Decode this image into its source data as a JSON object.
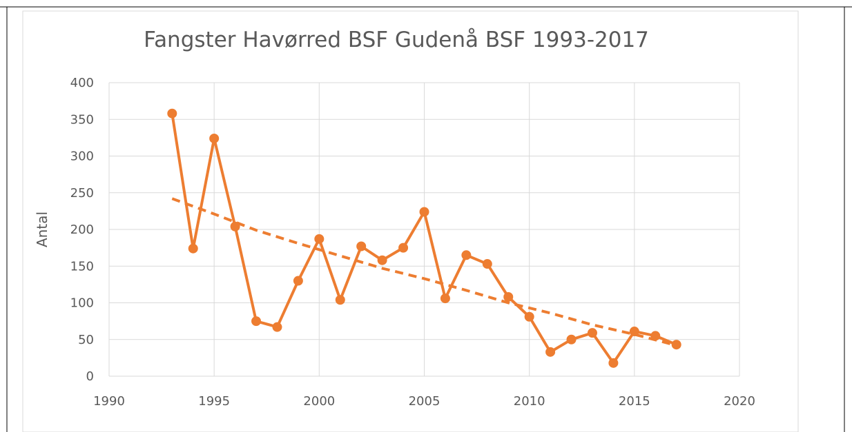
{
  "colors": {
    "series": "#ED7D31",
    "grid": "#D9D9D9",
    "text": "#595959",
    "border": "#000000"
  },
  "chart_data": {
    "type": "line",
    "title": "Fangster Havørred BSF Gudenå BSF 1993-2017",
    "xlabel": "",
    "ylabel": "Antal",
    "xlim": [
      1990,
      2020
    ],
    "ylim": [
      0,
      400
    ],
    "xticks": [
      1990,
      1995,
      2000,
      2005,
      2010,
      2015,
      2020
    ],
    "yticks": [
      0,
      50,
      100,
      150,
      200,
      250,
      300,
      350,
      400
    ],
    "grid": true,
    "legend": "none",
    "series": [
      {
        "x": [
          1993,
          1994,
          1995,
          1996,
          1997,
          1998,
          1999,
          2000,
          2001,
          2002,
          2003,
          2004,
          2005,
          2006,
          2007,
          2008,
          2009,
          2010,
          2011,
          2012,
          2013,
          2014,
          2015,
          2016,
          2017
        ],
        "y": [
          358,
          174,
          324,
          204,
          75,
          67,
          130,
          187,
          104,
          177,
          158,
          175,
          224,
          106,
          165,
          153,
          108,
          81,
          33,
          50,
          59,
          18,
          61,
          55,
          43
        ],
        "style": "line-with-markers"
      }
    ],
    "trendline": {
      "type": "exponential",
      "style": "dashed",
      "x": [
        1993,
        1995,
        1997,
        1999,
        2001,
        2003,
        2005,
        2007,
        2009,
        2011,
        2013,
        2015,
        2017
      ],
      "y": [
        242,
        221,
        199,
        181,
        164,
        147,
        133,
        117,
        100,
        86,
        70,
        57,
        42
      ]
    }
  }
}
